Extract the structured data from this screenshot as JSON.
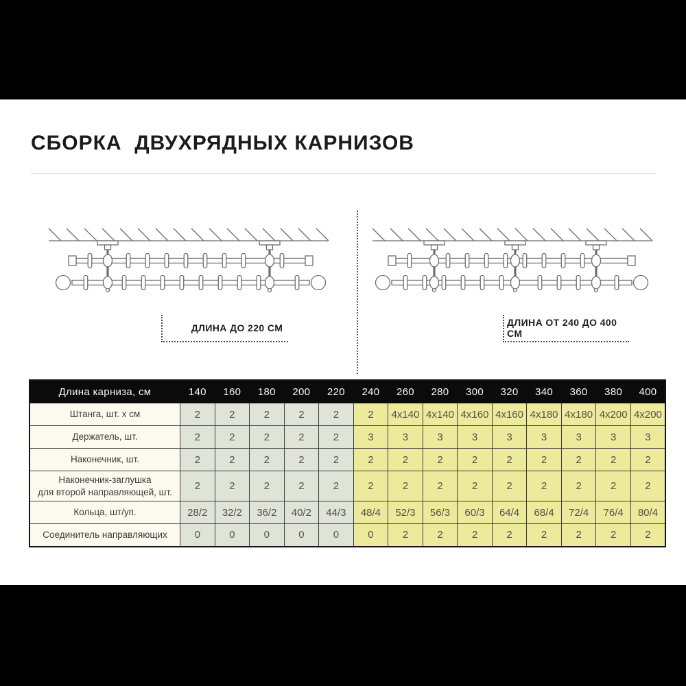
{
  "title": "СБОРКА  ДВУХРЯДНЫХ КАРНИЗОВ",
  "diagrams": {
    "short_label": "ДЛИНА ДО 220 СМ",
    "long_label": "ДЛИНА ОТ 240 ДО 400 СМ"
  },
  "table": {
    "header_label": "Длина карниза, см",
    "lengths": [
      "140",
      "160",
      "180",
      "200",
      "220",
      "240",
      "260",
      "280",
      "300",
      "320",
      "340",
      "360",
      "380",
      "400"
    ],
    "short_group_count": 5,
    "rows": [
      {
        "label": "Штанга, шт. х см",
        "values": [
          "2",
          "2",
          "2",
          "2",
          "2",
          "2",
          "4x140",
          "4x140",
          "4x160",
          "4x160",
          "4x180",
          "4x180",
          "4x200",
          "4x200"
        ]
      },
      {
        "label": "Держатель, шт.",
        "values": [
          "2",
          "2",
          "2",
          "2",
          "2",
          "3",
          "3",
          "3",
          "3",
          "3",
          "3",
          "3",
          "3",
          "3"
        ]
      },
      {
        "label": "Наконечник, шт.",
        "values": [
          "2",
          "2",
          "2",
          "2",
          "2",
          "2",
          "2",
          "2",
          "2",
          "2",
          "2",
          "2",
          "2",
          "2"
        ]
      },
      {
        "label": "Наконечник-заглушка\nдля второй направляющей, шт.",
        "values": [
          "2",
          "2",
          "2",
          "2",
          "2",
          "2",
          "2",
          "2",
          "2",
          "2",
          "2",
          "2",
          "2",
          "2"
        ]
      },
      {
        "label": "Кольца, шт/уп.",
        "values": [
          "28/2",
          "32/2",
          "36/2",
          "40/2",
          "44/3",
          "48/4",
          "52/3",
          "56/3",
          "60/3",
          "64/4",
          "68/4",
          "72/4",
          "76/4",
          "80/4"
        ]
      },
      {
        "label": "Соединитель направляющих",
        "values": [
          "0",
          "0",
          "0",
          "0",
          "0",
          "0",
          "2",
          "2",
          "2",
          "2",
          "2",
          "2",
          "2",
          "2"
        ]
      }
    ],
    "colors": {
      "header_bg": "#0b0b0b",
      "label_column_bg": "#fcfaee",
      "short_group_bg": "#e0e3d7",
      "long_group_bg": "#edea9c",
      "border": "#3e3e3e"
    }
  }
}
